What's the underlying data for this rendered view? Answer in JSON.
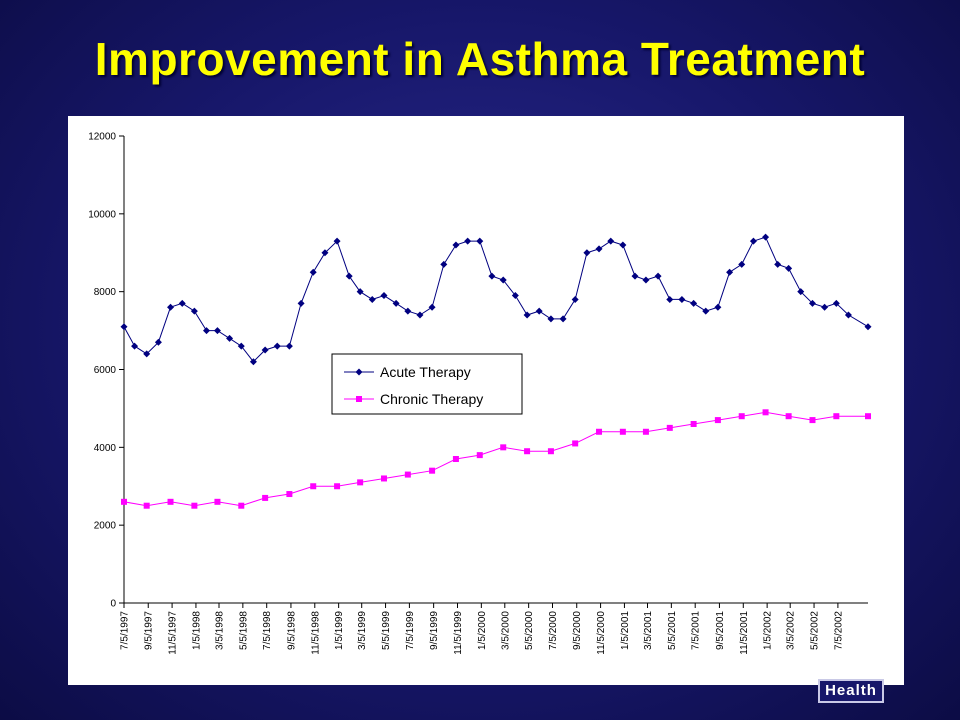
{
  "slide": {
    "title": "Improvement in Asthma Treatment",
    "logo_text": "Health"
  },
  "colors": {
    "background": "#17176a",
    "title": "#ffff00",
    "acute": "#000080",
    "chronic": "#ff00ff"
  },
  "chart_data": {
    "type": "line",
    "title": "",
    "xlabel": "",
    "ylabel": "",
    "ylim": [
      0,
      12000
    ],
    "yticks": [
      0,
      2000,
      4000,
      6000,
      8000,
      10000,
      12000
    ],
    "x_tick_labels": [
      "7/5/1997",
      "9/5/1997",
      "11/5/1997",
      "1/5/1998",
      "3/5/1998",
      "5/5/1998",
      "7/5/1998",
      "9/5/1998",
      "11/5/1998",
      "1/5/1999",
      "3/5/1999",
      "5/5/1999",
      "7/5/1999",
      "9/5/1999",
      "11/5/1999",
      "1/5/2000",
      "3/5/2000",
      "5/5/2000",
      "7/5/2000",
      "9/5/2000",
      "11/5/2000",
      "1/5/2001",
      "3/5/2001",
      "5/5/2001",
      "7/5/2001",
      "9/5/2001",
      "11/5/2001",
      "1/5/2002",
      "3/5/2002",
      "5/5/2002",
      "7/5/2002"
    ],
    "x_start": "7/5/1997",
    "x_end": "9/20/2002",
    "grid": false,
    "legend": "center-left",
    "series": [
      {
        "name": "Acute Therapy",
        "marker": "diamond",
        "points": [
          [
            "7/5/1997",
            7100
          ],
          [
            "8/1/1997",
            6600
          ],
          [
            "9/1/1997",
            6400
          ],
          [
            "10/1/1997",
            6700
          ],
          [
            "11/1/1997",
            7600
          ],
          [
            "12/1/1997",
            7700
          ],
          [
            "1/1/1998",
            7500
          ],
          [
            "2/1/1998",
            7000
          ],
          [
            "3/1/1998",
            7000
          ],
          [
            "4/1/1998",
            6800
          ],
          [
            "5/1/1998",
            6600
          ],
          [
            "6/1/1998",
            6200
          ],
          [
            "7/1/1998",
            6500
          ],
          [
            "8/1/1998",
            6600
          ],
          [
            "9/1/1998",
            6600
          ],
          [
            "10/1/1998",
            7700
          ],
          [
            "11/1/1998",
            8500
          ],
          [
            "12/1/1998",
            9000
          ],
          [
            "1/1/1999",
            9300
          ],
          [
            "2/1/1999",
            8400
          ],
          [
            "3/1/1999",
            8000
          ],
          [
            "4/1/1999",
            7800
          ],
          [
            "5/1/1999",
            7900
          ],
          [
            "6/1/1999",
            7700
          ],
          [
            "7/1/1999",
            7500
          ],
          [
            "8/1/1999",
            7400
          ],
          [
            "9/1/1999",
            7600
          ],
          [
            "10/1/1999",
            8700
          ],
          [
            "11/1/1999",
            9200
          ],
          [
            "12/1/1999",
            9300
          ],
          [
            "1/1/2000",
            9300
          ],
          [
            "2/1/2000",
            8400
          ],
          [
            "3/1/2000",
            8300
          ],
          [
            "4/1/2000",
            7900
          ],
          [
            "5/1/2000",
            7400
          ],
          [
            "6/1/2000",
            7500
          ],
          [
            "7/1/2000",
            7300
          ],
          [
            "8/1/2000",
            7300
          ],
          [
            "9/1/2000",
            7800
          ],
          [
            "10/1/2000",
            9000
          ],
          [
            "11/1/2000",
            9100
          ],
          [
            "12/1/2000",
            9300
          ],
          [
            "1/1/2001",
            9200
          ],
          [
            "2/1/2001",
            8400
          ],
          [
            "3/1/2001",
            8300
          ],
          [
            "4/1/2001",
            8400
          ],
          [
            "5/1/2001",
            7800
          ],
          [
            "6/1/2001",
            7800
          ],
          [
            "7/1/2001",
            7700
          ],
          [
            "8/1/2001",
            7500
          ],
          [
            "9/1/2001",
            7600
          ],
          [
            "10/1/2001",
            8500
          ],
          [
            "11/1/2001",
            8700
          ],
          [
            "12/1/2001",
            9300
          ],
          [
            "1/1/2002",
            9400
          ],
          [
            "2/1/2002",
            8700
          ],
          [
            "3/1/2002",
            8600
          ],
          [
            "4/1/2002",
            8000
          ],
          [
            "5/1/2002",
            7700
          ],
          [
            "6/1/2002",
            7600
          ],
          [
            "7/1/2002",
            7700
          ],
          [
            "8/1/2002",
            7400
          ],
          [
            "9/20/2002",
            7100
          ]
        ]
      },
      {
        "name": "Chronic Therapy",
        "marker": "square",
        "points": [
          [
            "7/5/1997",
            2600
          ],
          [
            "9/1/1997",
            2500
          ],
          [
            "11/1/1997",
            2600
          ],
          [
            "1/1/1998",
            2500
          ],
          [
            "3/1/1998",
            2600
          ],
          [
            "5/1/1998",
            2500
          ],
          [
            "7/1/1998",
            2700
          ],
          [
            "9/1/1998",
            2800
          ],
          [
            "11/1/1998",
            3000
          ],
          [
            "1/1/1999",
            3000
          ],
          [
            "3/1/1999",
            3100
          ],
          [
            "5/1/1999",
            3200
          ],
          [
            "7/1/1999",
            3300
          ],
          [
            "9/1/1999",
            3400
          ],
          [
            "11/1/1999",
            3700
          ],
          [
            "1/1/2000",
            3800
          ],
          [
            "3/1/2000",
            4000
          ],
          [
            "5/1/2000",
            3900
          ],
          [
            "7/1/2000",
            3900
          ],
          [
            "9/1/2000",
            4100
          ],
          [
            "11/1/2000",
            4400
          ],
          [
            "1/1/2001",
            4400
          ],
          [
            "3/1/2001",
            4400
          ],
          [
            "5/1/2001",
            4500
          ],
          [
            "7/1/2001",
            4600
          ],
          [
            "9/1/2001",
            4700
          ],
          [
            "11/1/2001",
            4800
          ],
          [
            "1/1/2002",
            4900
          ],
          [
            "3/1/2002",
            4800
          ],
          [
            "5/1/2002",
            4700
          ],
          [
            "7/1/2002",
            4800
          ],
          [
            "9/20/2002",
            4800
          ]
        ]
      }
    ]
  }
}
